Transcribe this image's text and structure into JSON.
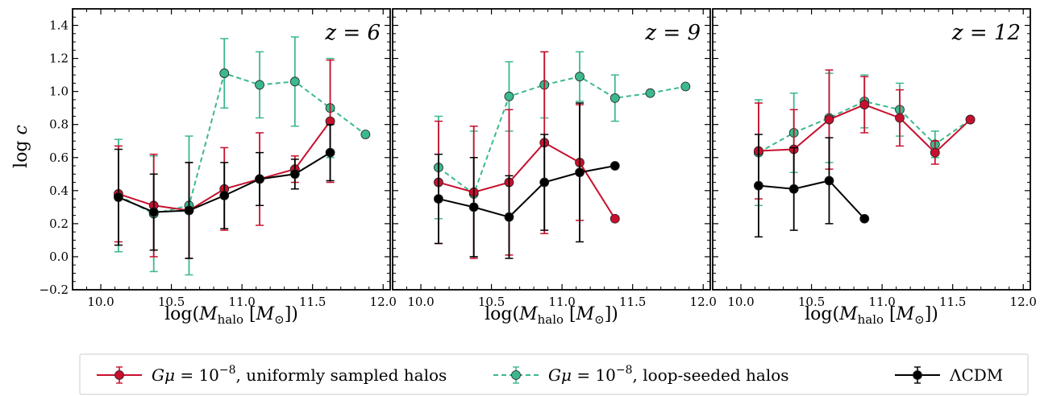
{
  "chart_data": {
    "type": "line",
    "ylabel_base": "log",
    "ylabel_var": "c",
    "xlabel_prefix": "log(",
    "xlabel_var": "M",
    "xlabel_sub": "halo",
    "xlabel_unit_var": "M",
    "xlabel_unit_sub": "⊙",
    "xlabel_suffix": "])",
    "xlim": [
      9.8,
      12.05
    ],
    "ylim": [
      -0.2,
      1.5
    ],
    "xticks": [
      "10.0",
      "10.5",
      "11.0",
      "11.5",
      "12.0"
    ],
    "xtick_values": [
      10.0,
      10.5,
      11.0,
      11.5,
      12.0
    ],
    "yticks": [
      "−0.2",
      "0.0",
      "0.2",
      "0.4",
      "0.6",
      "0.8",
      "1.0",
      "1.2",
      "1.4"
    ],
    "ytick_values": [
      -0.2,
      0.0,
      0.2,
      0.4,
      0.6,
      0.8,
      1.0,
      1.2,
      1.4
    ],
    "legend": {
      "placement": "bottom-center",
      "entries": [
        {
          "series": "uniform",
          "label_pre": "Gμ = 10",
          "label_exp": "−8",
          "label_post": ", uniformly sampled halos"
        },
        {
          "series": "loop",
          "label_pre": "Gμ = 10",
          "label_exp": "−8",
          "label_post": ", loop-seeded halos"
        },
        {
          "series": "lcdm",
          "label_pre": "ΛCDM",
          "label_exp": "",
          "label_post": ""
        }
      ]
    },
    "series_styles": {
      "uniform": {
        "color": "#c8102e",
        "dash": false
      },
      "loop": {
        "color": "#3cb98c",
        "dash": true
      },
      "lcdm": {
        "color": "#000000",
        "dash": false
      }
    },
    "panels": [
      {
        "label_var": "z",
        "label_value": "6",
        "series": {
          "uniform": {
            "x": [
              10.125,
              10.375,
              10.625,
              10.875,
              11.125,
              11.375,
              11.625
            ],
            "y": [
              0.38,
              0.31,
              0.28,
              0.41,
              0.47,
              0.53,
              0.82
            ],
            "err": [
              0.29,
              0.31,
              0.29,
              0.25,
              0.28,
              0.08,
              0.37
            ]
          },
          "loop": {
            "x": [
              10.125,
              10.375,
              10.625,
              10.875,
              11.125,
              11.375,
              11.625,
              11.875
            ],
            "y": [
              0.37,
              0.26,
              0.31,
              1.11,
              1.04,
              1.06,
              0.9,
              0.74
            ],
            "err": [
              0.34,
              0.35,
              0.42,
              0.21,
              0.2,
              0.27,
              0.3,
              0
            ]
          },
          "lcdm": {
            "x": [
              10.125,
              10.375,
              10.625,
              10.875,
              11.125,
              11.375,
              11.625
            ],
            "y": [
              0.36,
              0.27,
              0.28,
              0.37,
              0.47,
              0.5,
              0.63
            ],
            "err": [
              0.29,
              0.23,
              0.29,
              0.2,
              0.16,
              0.09,
              0.17
            ]
          }
        }
      },
      {
        "label_var": "z",
        "label_value": "9",
        "series": {
          "uniform": {
            "x": [
              10.125,
              10.375,
              10.625,
              10.875,
              11.125,
              11.375
            ],
            "y": [
              0.45,
              0.39,
              0.45,
              0.69,
              0.57,
              0.23
            ],
            "err": [
              0.37,
              0.4,
              0.44,
              0.55,
              0.35,
              0
            ]
          },
          "loop": {
            "x": [
              10.125,
              10.375,
              10.625,
              10.875,
              11.125,
              11.375,
              11.625,
              11.875
            ],
            "y": [
              0.54,
              0.38,
              0.97,
              1.04,
              1.09,
              0.96,
              0.99,
              1.03
            ],
            "err": [
              0.31,
              0.38,
              0.21,
              0.2,
              0.15,
              0.14,
              0,
              0
            ]
          },
          "lcdm": {
            "x": [
              10.125,
              10.375,
              10.625,
              10.875,
              11.125,
              11.375
            ],
            "y": [
              0.35,
              0.3,
              0.24,
              0.45,
              0.51,
              0.55
            ],
            "err": [
              0.27,
              0.3,
              0.25,
              0.29,
              0.42,
              0
            ]
          }
        }
      },
      {
        "label_var": "z",
        "label_value": "12",
        "series": {
          "uniform": {
            "x": [
              10.125,
              10.375,
              10.625,
              10.875,
              11.125,
              11.375,
              11.625
            ],
            "y": [
              0.64,
              0.65,
              0.83,
              0.92,
              0.84,
              0.63,
              0.83
            ],
            "err": [
              0.29,
              0.24,
              0.3,
              0.17,
              0.17,
              0.07,
              0
            ]
          },
          "loop": {
            "x": [
              10.125,
              10.375,
              10.625,
              10.875,
              11.125,
              11.375,
              11.625
            ],
            "y": [
              0.63,
              0.75,
              0.84,
              0.94,
              0.89,
              0.68,
              0.83
            ],
            "err": [
              0.32,
              0.24,
              0.27,
              0.16,
              0.16,
              0.08,
              0
            ]
          },
          "lcdm": {
            "x": [
              10.125,
              10.375,
              10.625,
              10.875
            ],
            "y": [
              0.43,
              0.41,
              0.46,
              0.23
            ],
            "err": [
              0.31,
              0.25,
              0.26,
              0
            ]
          }
        }
      }
    ]
  }
}
